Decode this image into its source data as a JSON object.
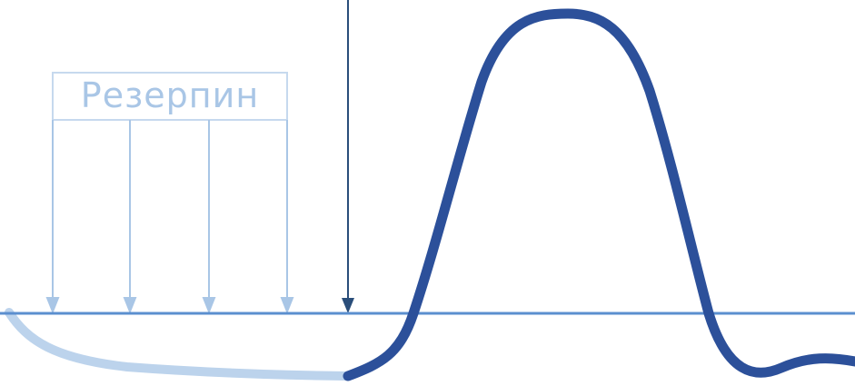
{
  "label": {
    "text": "Резерпин"
  },
  "colors": {
    "label_text": "#a9c6e6",
    "label_box": "#c6d9ee",
    "thin_arrows": "#a9c6e6",
    "main_arrow": "#2a4e7a",
    "baseline": "#5b8fcf",
    "faded_curve": "#bcd3ec",
    "main_curve": "#2c509a"
  },
  "icons": {
    "arrowheads": "arrow-down-icon"
  }
}
